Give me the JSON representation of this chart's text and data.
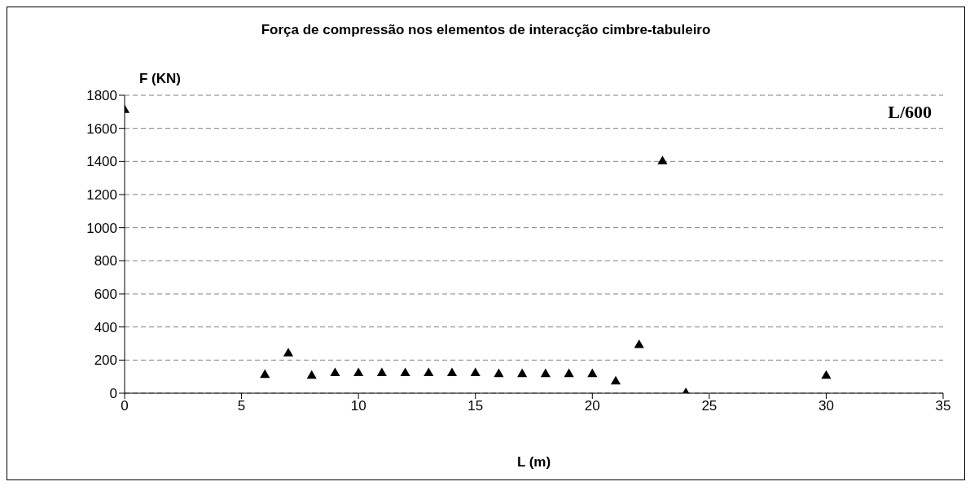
{
  "chart_data": {
    "type": "scatter",
    "title": "Força de compressão nos elementos de interacção cimbre-tabuleiro",
    "xlabel": "L (m)",
    "ylabel": "F (KN)",
    "annotations": [
      "L/600"
    ],
    "x": [
      0,
      6,
      7,
      8,
      9,
      10,
      11,
      12,
      13,
      14,
      15,
      16,
      17,
      18,
      19,
      20,
      21,
      22,
      23,
      24,
      30
    ],
    "series": [
      {
        "color": "#000000",
        "values": [
          1710,
          110,
          240,
          105,
          120,
          120,
          120,
          120,
          120,
          120,
          120,
          115,
          115,
          115,
          115,
          115,
          70,
          290,
          1400,
          0,
          105
        ]
      }
    ],
    "xlim": [
      0,
      35
    ],
    "xticks": [
      0,
      5,
      10,
      15,
      20,
      25,
      30,
      35
    ],
    "ylim": [
      0,
      1800
    ],
    "yticks": [
      0,
      200,
      400,
      600,
      800,
      1000,
      1200,
      1400,
      1600,
      1800
    ],
    "grid": "y",
    "marker": "triangle"
  }
}
